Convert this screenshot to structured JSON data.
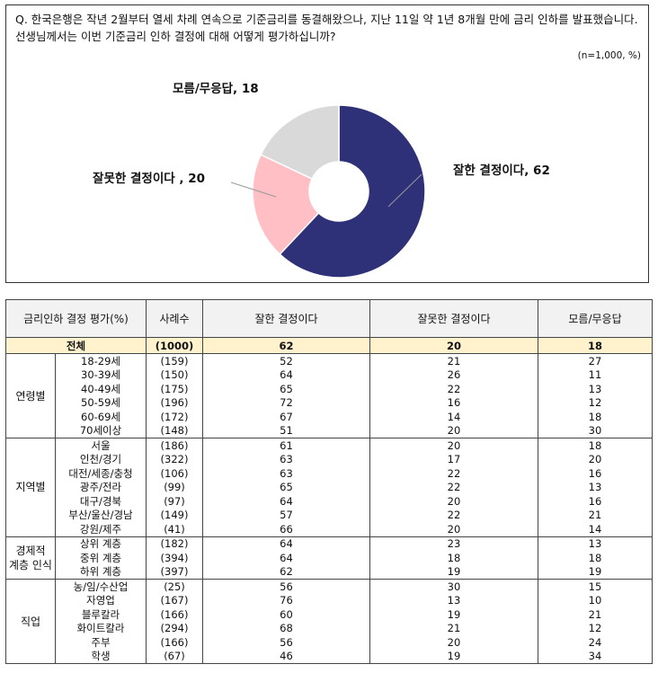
{
  "question": "Q. 한국은행은 작년 2월부터 열세 차례 연속으로 기준금리를 동결해왔으나, 지난 11일 약 1년 8개월 만에 금리 인하를 발표했습니다. 선생님께서는 이번 기준금리 인하 결정에 대해 어떻게 평가하십니까?",
  "sample_note": "(n=1,000, %)",
  "chart_data": {
    "type": "pie",
    "donut": true,
    "slices": [
      {
        "label": "잘한 결정이다, 62",
        "value": 62,
        "color": "#2e3178"
      },
      {
        "label": "잘못한 결정이다 , 20",
        "value": 20,
        "color": "#ffbfc4"
      },
      {
        "label": "모름/무응답, 18",
        "value": 18,
        "color": "#d9d9d9"
      }
    ]
  },
  "table": {
    "headers": [
      "금리인하 결정 평가(%)",
      "사례수",
      "잘한 결정이다",
      "잘못한 결정이다",
      "모름/무응답"
    ],
    "total": {
      "label": "전체",
      "n": "(1000)",
      "v1": "62",
      "v2": "20",
      "v3": "18"
    },
    "groups": [
      {
        "name": "연령별",
        "rows": [
          {
            "sub": "18-29세",
            "n": "(159)",
            "v1": "52",
            "v2": "21",
            "v3": "27"
          },
          {
            "sub": "30-39세",
            "n": "(150)",
            "v1": "64",
            "v2": "26",
            "v3": "11"
          },
          {
            "sub": "40-49세",
            "n": "(175)",
            "v1": "65",
            "v2": "22",
            "v3": "13"
          },
          {
            "sub": "50-59세",
            "n": "(196)",
            "v1": "72",
            "v2": "16",
            "v3": "12"
          },
          {
            "sub": "60-69세",
            "n": "(172)",
            "v1": "67",
            "v2": "14",
            "v3": "18"
          },
          {
            "sub": "70세이상",
            "n": "(148)",
            "v1": "51",
            "v2": "20",
            "v3": "30"
          }
        ]
      },
      {
        "name": "지역별",
        "rows": [
          {
            "sub": "서울",
            "n": "(186)",
            "v1": "61",
            "v2": "20",
            "v3": "18"
          },
          {
            "sub": "인천/경기",
            "n": "(322)",
            "v1": "63",
            "v2": "17",
            "v3": "20"
          },
          {
            "sub": "대전/세종/충청",
            "n": "(106)",
            "v1": "63",
            "v2": "22",
            "v3": "16"
          },
          {
            "sub": "광주/전라",
            "n": "(99)",
            "v1": "65",
            "v2": "22",
            "v3": "13"
          },
          {
            "sub": "대구/경북",
            "n": "(97)",
            "v1": "64",
            "v2": "20",
            "v3": "16"
          },
          {
            "sub": "부산/울산/경남",
            "n": "(149)",
            "v1": "57",
            "v2": "22",
            "v3": "21"
          },
          {
            "sub": "강원/제주",
            "n": "(41)",
            "v1": "66",
            "v2": "20",
            "v3": "14"
          }
        ]
      },
      {
        "name": "경제적\n계층 인식",
        "rows": [
          {
            "sub": "상위 계층",
            "n": "(182)",
            "v1": "64",
            "v2": "23",
            "v3": "13"
          },
          {
            "sub": "중위 계층",
            "n": "(394)",
            "v1": "64",
            "v2": "18",
            "v3": "18"
          },
          {
            "sub": "하위 계층",
            "n": "(397)",
            "v1": "62",
            "v2": "19",
            "v3": "19"
          }
        ]
      },
      {
        "name": "직업",
        "rows": [
          {
            "sub": "농/임/수산업",
            "n": "(25)",
            "v1": "56",
            "v2": "30",
            "v3": "15"
          },
          {
            "sub": "자영업",
            "n": "(167)",
            "v1": "76",
            "v2": "13",
            "v3": "10"
          },
          {
            "sub": "블루칼라",
            "n": "(166)",
            "v1": "60",
            "v2": "19",
            "v3": "21"
          },
          {
            "sub": "화이트칼라",
            "n": "(294)",
            "v1": "68",
            "v2": "21",
            "v3": "12"
          },
          {
            "sub": "주부",
            "n": "(166)",
            "v1": "56",
            "v2": "20",
            "v3": "24"
          },
          {
            "sub": "학생",
            "n": "(67)",
            "v1": "46",
            "v2": "19",
            "v3": "34"
          }
        ]
      }
    ]
  }
}
